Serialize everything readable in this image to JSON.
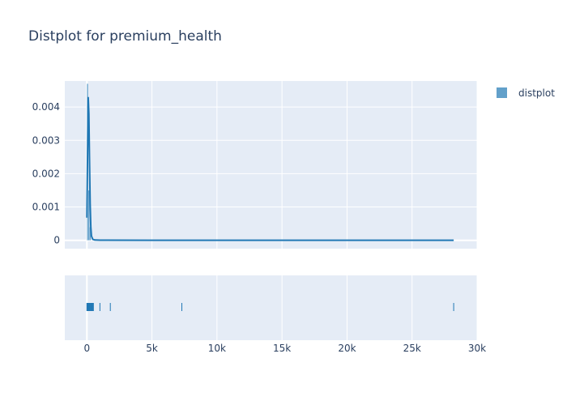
{
  "chart_data": {
    "type": "area",
    "title": "Distplot for premium_health",
    "xlabel": "",
    "ylabel": "",
    "xlim": [
      -1700,
      30000
    ],
    "ylim": [
      -0.00025,
      0.00478
    ],
    "x_ticks": [
      0,
      5000,
      10000,
      15000,
      20000,
      25000,
      30000
    ],
    "x_tick_labels": [
      "0",
      "5k",
      "10k",
      "15k",
      "20k",
      "25k",
      "30k"
    ],
    "y_ticks": [
      0,
      0.001,
      0.002,
      0.003,
      0.004
    ],
    "y_tick_labels": [
      "0",
      "0.001",
      "0.002",
      "0.003",
      "0.004"
    ],
    "grid": true,
    "legend": {
      "position": "top-right",
      "entries": [
        "distplot"
      ]
    },
    "colors": {
      "series": "#1f77b4",
      "plot_bg": "#e5ecf6",
      "grid": "#ffffff",
      "text": "#2a3f5f"
    },
    "series": [
      {
        "name": "distplot",
        "histogram": {
          "bins": [
            {
              "x0": 0,
              "x1": 100,
              "value": 0.0047
            },
            {
              "x0": 100,
              "x1": 200,
              "value": 0.0015
            },
            {
              "x0": 200,
              "x1": 300,
              "value": 0.0004
            }
          ]
        },
        "kde": {
          "x": [
            0,
            50,
            100,
            150,
            200,
            250,
            300,
            350,
            450,
            600,
            1000,
            5000,
            10000,
            20000,
            28200
          ],
          "y": [
            0.00068,
            0.0026,
            0.0043,
            0.0038,
            0.0024,
            0.0011,
            0.0004,
            0.00013,
            3e-05,
            1e-05,
            5e-06,
            2e-06,
            2e-06,
            2e-06,
            2e-06
          ]
        },
        "rug": [
          0,
          40,
          80,
          120,
          160,
          200,
          250,
          300,
          350,
          400,
          450,
          500,
          1000,
          1800,
          7300,
          28200
        ]
      }
    ]
  }
}
